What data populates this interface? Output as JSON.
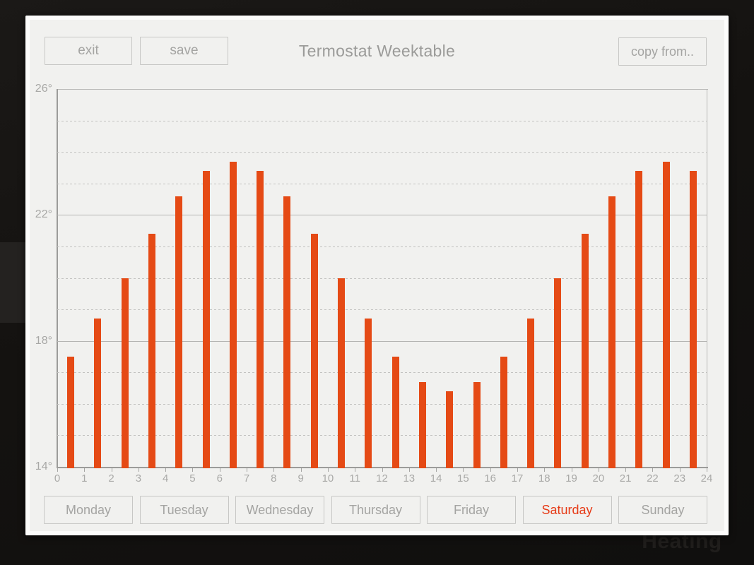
{
  "header": {
    "title": "Termostat Weektable",
    "exit_label": "exit",
    "save_label": "save",
    "copy_from_label": "copy from.."
  },
  "days": [
    {
      "label": "Monday",
      "selected": false
    },
    {
      "label": "Tuesday",
      "selected": false
    },
    {
      "label": "Wednesday",
      "selected": false
    },
    {
      "label": "Thursday",
      "selected": false
    },
    {
      "label": "Friday",
      "selected": false
    },
    {
      "label": "Saturday",
      "selected": true
    },
    {
      "label": "Sunday",
      "selected": false
    }
  ],
  "background": {
    "watermark": "Heating"
  },
  "chart_data": {
    "type": "bar",
    "title": "",
    "categories": [
      0,
      1,
      2,
      3,
      4,
      5,
      6,
      7,
      8,
      9,
      10,
      11,
      12,
      13,
      14,
      15,
      16,
      17,
      18,
      19,
      20,
      21,
      22,
      23
    ],
    "values": [
      17.5,
      18.7,
      20.0,
      21.4,
      22.6,
      23.4,
      23.7,
      23.4,
      22.6,
      21.4,
      20.0,
      18.7,
      17.5,
      16.7,
      16.4,
      16.7,
      17.5,
      18.7,
      20.0,
      21.4,
      22.6,
      23.4,
      23.7,
      23.4
    ],
    "xlim": [
      0,
      24
    ],
    "ylim": [
      14,
      26
    ],
    "x_tick_labels": [
      "0",
      "1",
      "2",
      "3",
      "4",
      "5",
      "6",
      "7",
      "8",
      "9",
      "10",
      "11",
      "12",
      "13",
      "14",
      "15",
      "16",
      "17",
      "18",
      "19",
      "20",
      "21",
      "22",
      "23",
      "24"
    ],
    "y_ticks": [
      {
        "value": 26,
        "label": "26°"
      },
      {
        "value": 22,
        "label": "22°"
      },
      {
        "value": 18,
        "label": "18°"
      },
      {
        "value": 14,
        "label": "14°"
      }
    ],
    "solid_gridlines_at": [
      22,
      18
    ],
    "dashed_gridlines_at": [
      25,
      24,
      23,
      21,
      20,
      19,
      17,
      16,
      15
    ],
    "grid": true,
    "legend": false,
    "bar_color": "#e54a15"
  },
  "colors": {
    "accent": "#e54a15",
    "selected_day_text": "#e63b17",
    "panel_background": "#f1f1ef",
    "button_border": "#c7c7c5",
    "muted_text": "#a4a4a2"
  }
}
